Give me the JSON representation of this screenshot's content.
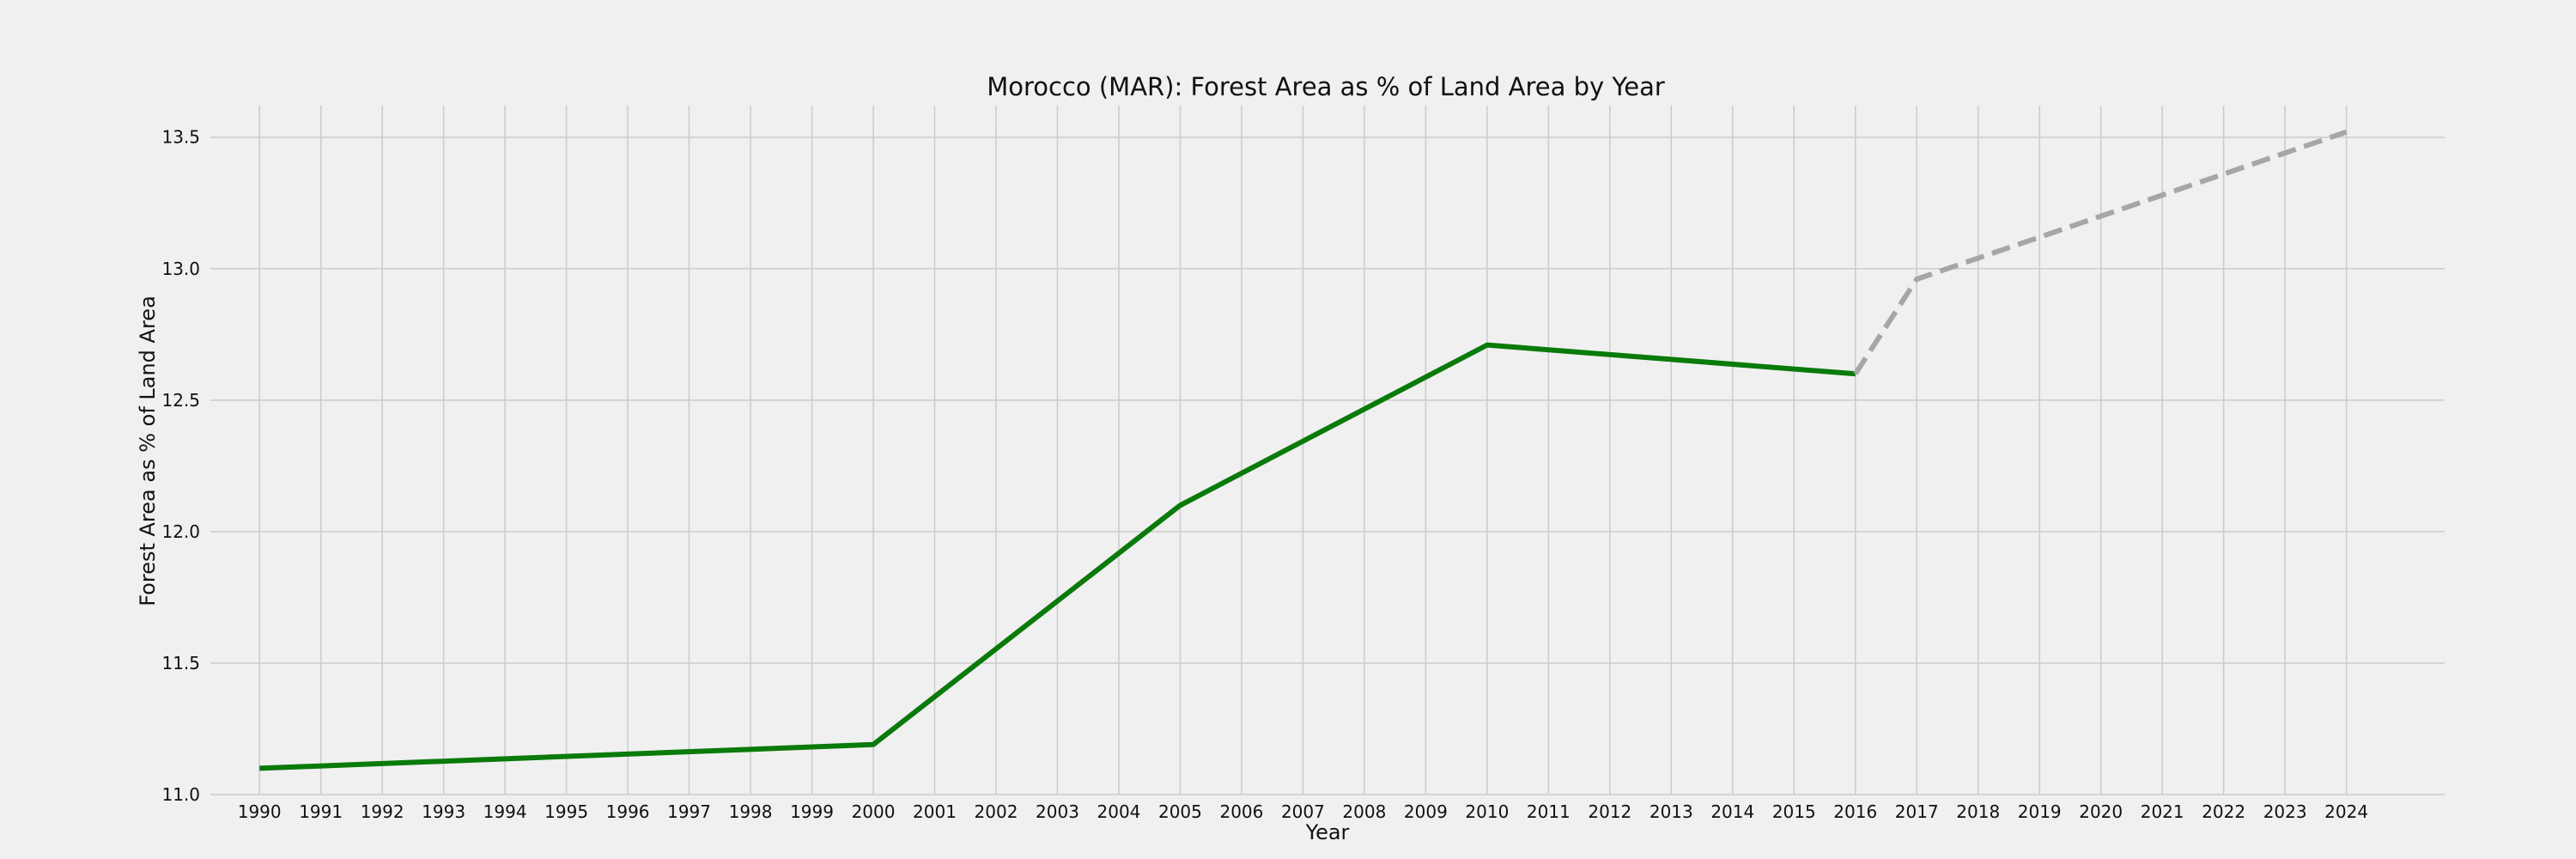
{
  "chart_data": {
    "type": "line",
    "title": "Morocco (MAR): Forest Area as % of Land Area by Year",
    "xlabel": "Year",
    "ylabel": "Forest Area as % of Land Area",
    "xlim": [
      1989.2,
      2025.6
    ],
    "ylim": [
      11.0,
      13.62
    ],
    "x_ticks": [
      "1990",
      "1991",
      "1992",
      "1993",
      "1994",
      "1995",
      "1996",
      "1997",
      "1998",
      "1999",
      "2000",
      "2001",
      "2002",
      "2003",
      "2004",
      "2005",
      "2006",
      "2007",
      "2008",
      "2009",
      "2010",
      "2011",
      "2012",
      "2013",
      "2014",
      "2015",
      "2016",
      "2017",
      "2018",
      "2019",
      "2020",
      "2021",
      "2022",
      "2023",
      "2024"
    ],
    "y_ticks": [
      "11.0",
      "11.5",
      "12.0",
      "12.5",
      "13.0",
      "13.5"
    ],
    "grid": true,
    "series": [
      {
        "style": "solid",
        "color": "#0a7a0a",
        "x": [
          1990,
          2000,
          2005,
          2010,
          2016
        ],
        "y": [
          11.1,
          11.19,
          12.1,
          12.71,
          12.6
        ]
      },
      {
        "style": "dashed",
        "color": "#a6a6a6",
        "x": [
          2016,
          2017,
          2018,
          2019,
          2020,
          2021,
          2022,
          2023,
          2024
        ],
        "y": [
          12.6,
          12.96,
          13.04,
          13.12,
          13.2,
          13.28,
          13.36,
          13.44,
          13.52
        ]
      }
    ]
  }
}
